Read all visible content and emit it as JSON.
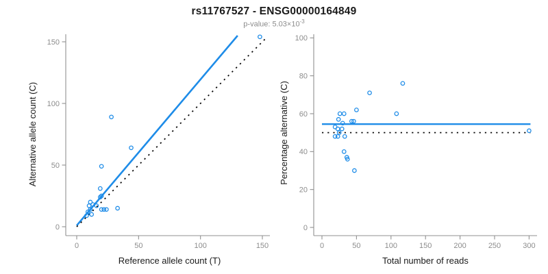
{
  "header": {
    "title": "rs11767527 - ENSG00000164849",
    "p_value_label": "p-value: 5.03×10",
    "p_value_exponent": "-3"
  },
  "colors": {
    "accent_blue": "#1E8CE8",
    "reference_black": "#0a0a0a",
    "axis_gray": "#8c8c8c",
    "axis_line_gray": "#909090",
    "label_black": "#1a1a1a"
  },
  "chart_data": [
    {
      "id": "allele-count-scatter",
      "type": "scatter",
      "xlabel": "Reference allele count (T)",
      "ylabel": "Alternative allele count (C)",
      "xlim": [
        0,
        155
      ],
      "ylim": [
        0,
        155
      ],
      "xticks": [
        0,
        50,
        100,
        150
      ],
      "yticks": [
        0,
        50,
        100,
        150
      ],
      "grid": false,
      "legend": "none",
      "points": [
        [
          8,
          9
        ],
        [
          9,
          12
        ],
        [
          12,
          10
        ],
        [
          11,
          14
        ],
        [
          10,
          17
        ],
        [
          16,
          17
        ],
        [
          13,
          18
        ],
        [
          11,
          20
        ],
        [
          19,
          24
        ],
        [
          20,
          25
        ],
        [
          19,
          31
        ],
        [
          20,
          14
        ],
        [
          22,
          14
        ],
        [
          24,
          14
        ],
        [
          33,
          15
        ],
        [
          20,
          49
        ],
        [
          44,
          64
        ],
        [
          28,
          89
        ],
        [
          148,
          154
        ]
      ],
      "lines": [
        {
          "name": "regression-line",
          "style": "solid",
          "color_key": "accent_blue",
          "x1": 0,
          "y1": 1,
          "x2": 130,
          "y2": 155,
          "width": 2.6
        },
        {
          "name": "identity-line",
          "style": "dotted",
          "color_key": "reference_black",
          "x1": 0,
          "y1": 0,
          "x2": 152,
          "y2": 152,
          "width": 1.8
        }
      ]
    },
    {
      "id": "percentage-vs-reads-scatter",
      "type": "scatter",
      "xlabel": "Total number of reads",
      "ylabel": "Percentage alternative (C)",
      "xlim": [
        0,
        310
      ],
      "ylim": [
        0,
        100
      ],
      "xticks": [
        0,
        50,
        100,
        150,
        200,
        250,
        300
      ],
      "yticks": [
        0,
        20,
        40,
        60,
        80,
        100
      ],
      "grid": false,
      "legend": "none",
      "points": [
        [
          19,
          53
        ],
        [
          23,
          52
        ],
        [
          29,
          52
        ],
        [
          25,
          50
        ],
        [
          19,
          48
        ],
        [
          23,
          48
        ],
        [
          33,
          48
        ],
        [
          24,
          57
        ],
        [
          30,
          55
        ],
        [
          43,
          56
        ],
        [
          46,
          56
        ],
        [
          26,
          60
        ],
        [
          32,
          60
        ],
        [
          50,
          62
        ],
        [
          69,
          71
        ],
        [
          108,
          60
        ],
        [
          117,
          76
        ],
        [
          32,
          40
        ],
        [
          36,
          37
        ],
        [
          37,
          36
        ],
        [
          47,
          30
        ],
        [
          300,
          51
        ]
      ],
      "lines": [
        {
          "name": "fitted-percentage-line",
          "style": "solid",
          "color_key": "accent_blue",
          "x1": 0,
          "y1": 54.5,
          "x2": 302,
          "y2": 54.5,
          "width": 2.4
        },
        {
          "name": "null-expectation-line",
          "style": "dotted",
          "color_key": "reference_black",
          "x1": 0,
          "y1": 50,
          "x2": 302,
          "y2": 50,
          "width": 1.8
        }
      ]
    }
  ]
}
